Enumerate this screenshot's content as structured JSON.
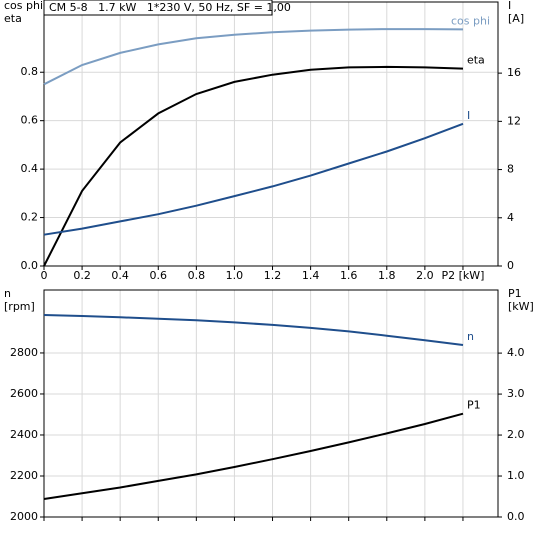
{
  "header": "CM 5-8   1.7 kW   1*230 V, 50 Hz, SF = 1,00",
  "chart_data": [
    {
      "type": "line",
      "ylabel": [
        "cos phi",
        "eta"
      ],
      "y2label": [
        "I",
        "[A]"
      ],
      "x": [
        0,
        0.2,
        0.4,
        0.6,
        0.8,
        1.0,
        1.2,
        1.4,
        1.6,
        1.8,
        2.0,
        2.2
      ],
      "xlim": [
        0,
        2.384
      ],
      "xticks": [
        0,
        0.2,
        0.4,
        0.6,
        0.8,
        {
          "value": 1.0,
          "label": "1.0"
        },
        1.2,
        1.4,
        1.6,
        1.8,
        {
          "value": 2.0,
          "label": "2.0"
        },
        {
          "value": 2.2,
          "label": "P2 [kW]"
        }
      ],
      "ylim": [
        0,
        1.09
      ],
      "yticks": [
        {
          "value": 0,
          "label": "0.0"
        },
        0.2,
        0.4,
        0.6,
        0.8
      ],
      "y2lim": [
        0,
        21.9
      ],
      "y2ticks": [
        0,
        4,
        8,
        12,
        16
      ],
      "grid": true,
      "series": [
        {
          "name": "cos phi",
          "color": "#7b9dc2",
          "values": [
            0.75,
            0.83,
            0.88,
            0.915,
            0.94,
            0.955,
            0.965,
            0.972,
            0.976,
            0.978,
            0.978,
            0.977
          ]
        },
        {
          "name": "eta",
          "color": "#000000",
          "values": [
            0.0,
            0.31,
            0.51,
            0.63,
            0.71,
            0.76,
            0.79,
            0.81,
            0.82,
            0.822,
            0.82,
            0.815
          ]
        },
        {
          "name": "I",
          "color": "#1f4e8c",
          "axis": "y2",
          "values": [
            2.6,
            3.1,
            3.7,
            4.3,
            5.0,
            5.8,
            6.6,
            7.5,
            8.5,
            9.5,
            10.6,
            11.8
          ]
        }
      ]
    },
    {
      "type": "line",
      "ylabel": [
        "n",
        "[rpm]"
      ],
      "y2label": [
        "P1",
        "[kW]"
      ],
      "x": [
        0,
        0.2,
        0.4,
        0.6,
        0.8,
        1.0,
        1.2,
        1.4,
        1.6,
        1.8,
        2.0,
        2.2
      ],
      "xlim": [
        0,
        2.384
      ],
      "xticks": [
        0,
        0.2,
        0.4,
        0.6,
        0.8,
        1.0,
        1.2,
        1.4,
        1.6,
        1.8,
        2.0,
        2.2
      ],
      "ylim": [
        2000,
        3107
      ],
      "yticks": [
        2000,
        2200,
        2400,
        2600,
        2800
      ],
      "y2lim": [
        0,
        5.54
      ],
      "y2ticks": [
        {
          "value": 0,
          "label": "0.0"
        },
        {
          "value": 1,
          "label": "1.0"
        },
        {
          "value": 2,
          "label": "2.0"
        },
        {
          "value": 3,
          "label": "3.0"
        },
        {
          "value": 4,
          "label": "4.0"
        }
      ],
      "grid": true,
      "series": [
        {
          "name": "n",
          "color": "#1f4e8c",
          "values": [
            2985,
            2980,
            2974,
            2967,
            2959,
            2949,
            2937,
            2922,
            2905,
            2884,
            2862,
            2839
          ]
        },
        {
          "name": "P1",
          "color": "#000000",
          "axis": "y2",
          "values": [
            0.44,
            0.58,
            0.72,
            0.88,
            1.04,
            1.22,
            1.41,
            1.61,
            1.82,
            2.04,
            2.27,
            2.52
          ]
        }
      ]
    }
  ]
}
